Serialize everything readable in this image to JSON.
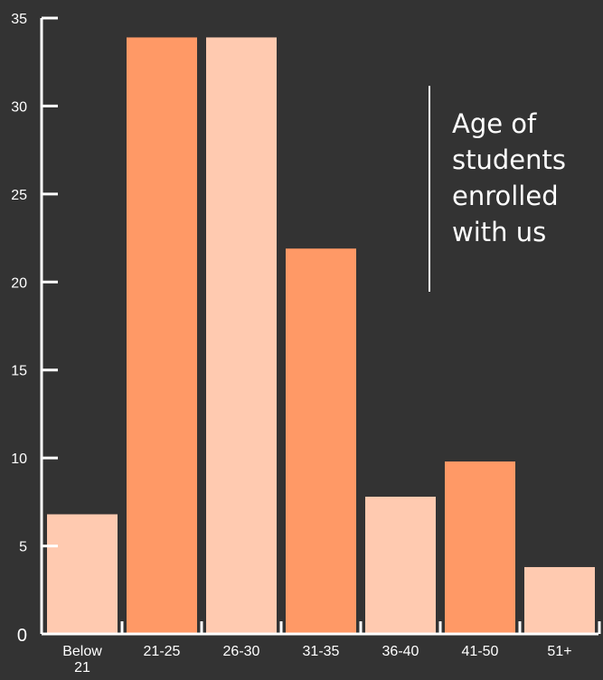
{
  "chart_data": {
    "type": "bar",
    "title_lines": [
      "Age of",
      "students",
      "enrolled",
      "with us"
    ],
    "categories": [
      "Below\n21",
      "21-25",
      "26-30",
      "31-35",
      "36-40",
      "41-50",
      "51+"
    ],
    "values": [
      6.8,
      33.9,
      33.9,
      21.9,
      7.8,
      9.8,
      3.8
    ],
    "bar_colors": [
      "#ffcab0",
      "#ff9966",
      "#ffcab0",
      "#ff9966",
      "#ffcab0",
      "#ff9966",
      "#ffcab0"
    ],
    "ylim": [
      0,
      35
    ],
    "yticks": [
      0,
      5,
      10,
      15,
      20,
      25,
      30,
      35
    ],
    "xlabel": "",
    "ylabel": "",
    "grid": false,
    "axis_color": "#ffffff",
    "background": "#333333"
  }
}
